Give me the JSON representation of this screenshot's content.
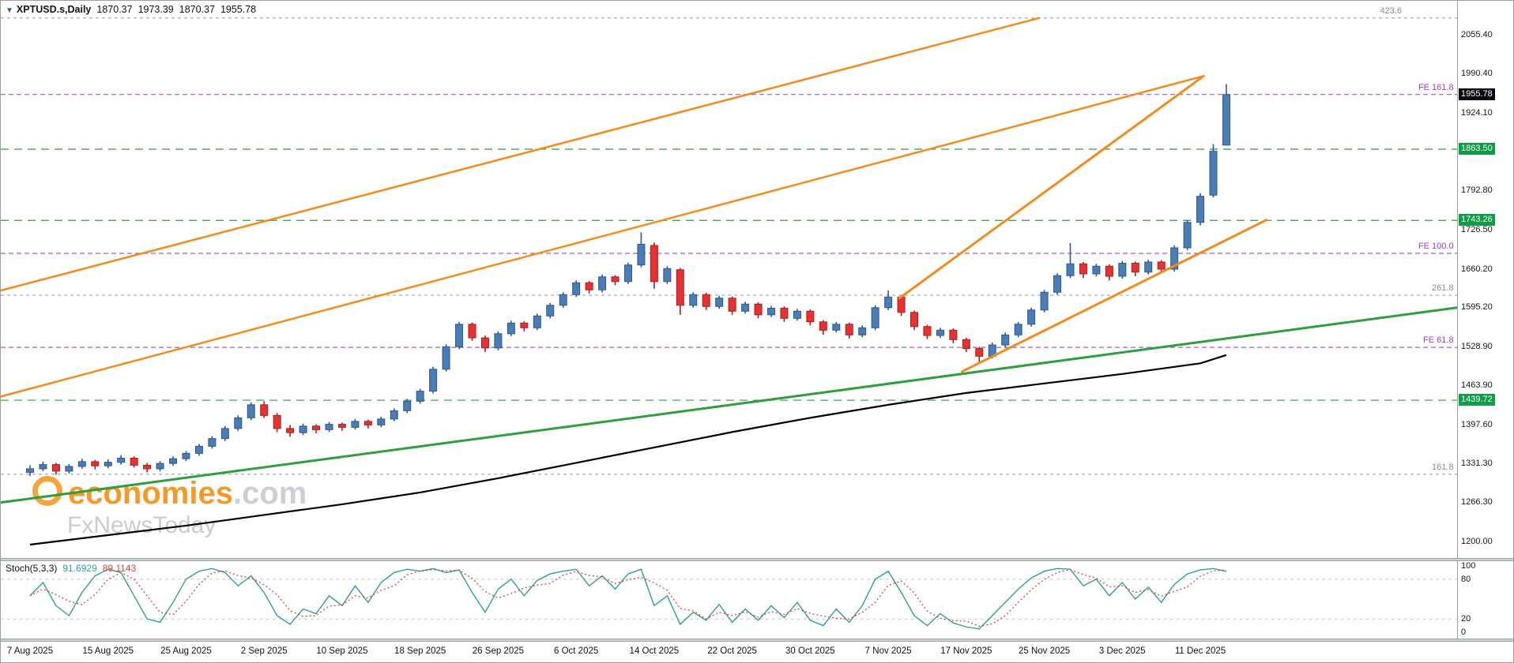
{
  "window": {
    "symbol_tag": "▼",
    "title": "XPTUSD.s,Daily",
    "ohlc": {
      "open": "1870.37",
      "high": "1973.39",
      "low": "1870.37",
      "close": "1955.78"
    }
  },
  "watermark": {
    "brand": "economies",
    "domain": ".com",
    "subbrand": "FxNewsToday"
  },
  "price_axis": {
    "ticks": [
      "2055.40",
      "1990.40",
      "1924.10",
      "1792.80",
      "1726.50",
      "1660.20",
      "1595.20",
      "1528.90",
      "1463.90",
      "1397.60",
      "1331.30",
      "1266.30",
      "1200.00"
    ],
    "level_labels": [
      {
        "text": "1955.78",
        "price": 1955.78,
        "style": "current"
      },
      {
        "text": "1863.50",
        "price": 1863.5,
        "style": "green"
      },
      {
        "text": "1743.26",
        "price": 1743.26,
        "style": "green"
      },
      {
        "text": "1439.72",
        "price": 1439.72,
        "style": "green"
      }
    ]
  },
  "time_axis": {
    "labels": [
      "7 Aug 2025",
      "15 Aug 2025",
      "25 Aug 2025",
      "2 Sep 2025",
      "10 Sep 2025",
      "18 Sep 2025",
      "26 Sep 2025",
      "6 Oct 2025",
      "14 Oct 2025",
      "22 Oct 2025",
      "30 Oct 2025",
      "7 Nov 2025",
      "17 Nov 2025",
      "25 Nov 2025",
      "3 Dec 2025",
      "11 Dec 2025"
    ],
    "step": 6
  },
  "colors": {
    "bull": "#4a7cb5",
    "bull_edge": "#31598a",
    "bear": "#e63232",
    "bear_edge": "#a81f1f",
    "ma": "#000000",
    "orange": "#f08c1e",
    "green_line": "#2f9e3f",
    "green_box": "#0e9c44",
    "purple": "#9a5ec4",
    "gray_level": "#a9aab6",
    "stoch_main": "#2e9e9e",
    "stoch_signal": "#e04040",
    "current_box": "#06060f"
  },
  "chart_data": {
    "type": "candlestick",
    "symbol": "XPTUSD.s",
    "timeframe": "Daily",
    "visible_price_range": [
      1173,
      2114
    ],
    "candles": [
      [
        1318,
        1330,
        1312,
        1324
      ],
      [
        1324,
        1336,
        1320,
        1331
      ],
      [
        1331,
        1334,
        1314,
        1320
      ],
      [
        1320,
        1332,
        1316,
        1328
      ],
      [
        1328,
        1341,
        1324,
        1336
      ],
      [
        1336,
        1339,
        1323,
        1329
      ],
      [
        1329,
        1340,
        1325,
        1335
      ],
      [
        1335,
        1347,
        1331,
        1342
      ],
      [
        1342,
        1345,
        1326,
        1330
      ],
      [
        1330,
        1334,
        1318,
        1324
      ],
      [
        1324,
        1337,
        1320,
        1333
      ],
      [
        1333,
        1345,
        1329,
        1341
      ],
      [
        1341,
        1354,
        1337,
        1350
      ],
      [
        1350,
        1366,
        1346,
        1362
      ],
      [
        1362,
        1379,
        1358,
        1375
      ],
      [
        1375,
        1396,
        1371,
        1392
      ],
      [
        1392,
        1414,
        1388,
        1410
      ],
      [
        1410,
        1436,
        1406,
        1432
      ],
      [
        1432,
        1438,
        1410,
        1414
      ],
      [
        1414,
        1418,
        1386,
        1392
      ],
      [
        1392,
        1398,
        1378,
        1385
      ],
      [
        1385,
        1400,
        1381,
        1396
      ],
      [
        1396,
        1399,
        1384,
        1390
      ],
      [
        1390,
        1403,
        1386,
        1399
      ],
      [
        1399,
        1402,
        1388,
        1394
      ],
      [
        1394,
        1408,
        1390,
        1404
      ],
      [
        1404,
        1407,
        1392,
        1398
      ],
      [
        1398,
        1412,
        1394,
        1408
      ],
      [
        1408,
        1426,
        1404,
        1422
      ],
      [
        1422,
        1442,
        1418,
        1438
      ],
      [
        1438,
        1459,
        1434,
        1455
      ],
      [
        1455,
        1496,
        1451,
        1492
      ],
      [
        1492,
        1534,
        1488,
        1530
      ],
      [
        1530,
        1572,
        1526,
        1568
      ],
      [
        1568,
        1571,
        1540,
        1545
      ],
      [
        1545,
        1549,
        1521,
        1528
      ],
      [
        1528,
        1556,
        1524,
        1552
      ],
      [
        1552,
        1574,
        1548,
        1570
      ],
      [
        1570,
        1573,
        1556,
        1562
      ],
      [
        1562,
        1586,
        1558,
        1582
      ],
      [
        1582,
        1604,
        1578,
        1600
      ],
      [
        1600,
        1622,
        1596,
        1618
      ],
      [
        1618,
        1642,
        1614,
        1638
      ],
      [
        1638,
        1641,
        1620,
        1626
      ],
      [
        1626,
        1652,
        1622,
        1648
      ],
      [
        1648,
        1651,
        1634,
        1640
      ],
      [
        1640,
        1672,
        1636,
        1668
      ],
      [
        1668,
        1723,
        1664,
        1703
      ],
      [
        1701,
        1706,
        1628,
        1640
      ],
      [
        1640,
        1666,
        1636,
        1662
      ],
      [
        1660,
        1663,
        1584,
        1600
      ],
      [
        1600,
        1622,
        1596,
        1618
      ],
      [
        1618,
        1621,
        1592,
        1598
      ],
      [
        1598,
        1616,
        1594,
        1612
      ],
      [
        1612,
        1615,
        1584,
        1590
      ],
      [
        1590,
        1606,
        1586,
        1602
      ],
      [
        1602,
        1605,
        1578,
        1584
      ],
      [
        1584,
        1599,
        1580,
        1595
      ],
      [
        1595,
        1598,
        1572,
        1578
      ],
      [
        1578,
        1594,
        1574,
        1590
      ],
      [
        1590,
        1593,
        1566,
        1572
      ],
      [
        1572,
        1575,
        1550,
        1558
      ],
      [
        1558,
        1572,
        1554,
        1568
      ],
      [
        1568,
        1571,
        1544,
        1550
      ],
      [
        1550,
        1566,
        1546,
        1562
      ],
      [
        1562,
        1600,
        1558,
        1596
      ],
      [
        1596,
        1625,
        1592,
        1614
      ],
      [
        1614,
        1617,
        1582,
        1588
      ],
      [
        1588,
        1591,
        1558,
        1564
      ],
      [
        1564,
        1567,
        1543,
        1549
      ],
      [
        1549,
        1562,
        1545,
        1558
      ],
      [
        1558,
        1561,
        1536,
        1542
      ],
      [
        1542,
        1545,
        1521,
        1527
      ],
      [
        1527,
        1530,
        1502,
        1514
      ],
      [
        1514,
        1537,
        1510,
        1533
      ],
      [
        1533,
        1554,
        1529,
        1550
      ],
      [
        1550,
        1572,
        1546,
        1568
      ],
      [
        1568,
        1596,
        1564,
        1592
      ],
      [
        1592,
        1626,
        1588,
        1622
      ],
      [
        1622,
        1654,
        1618,
        1650
      ],
      [
        1650,
        1705,
        1646,
        1670
      ],
      [
        1670,
        1673,
        1646,
        1653
      ],
      [
        1653,
        1670,
        1649,
        1666
      ],
      [
        1666,
        1669,
        1642,
        1649
      ],
      [
        1649,
        1675,
        1645,
        1671
      ],
      [
        1671,
        1674,
        1649,
        1656
      ],
      [
        1656,
        1677,
        1652,
        1673
      ],
      [
        1673,
        1676,
        1654,
        1661
      ],
      [
        1661,
        1701,
        1657,
        1697
      ],
      [
        1697,
        1744,
        1693,
        1740
      ],
      [
        1740,
        1789,
        1735,
        1784
      ],
      [
        1786,
        1872,
        1782,
        1860
      ],
      [
        1870.37,
        1973.39,
        1870.37,
        1955.78
      ]
    ],
    "ma_black": {
      "indices": [
        0,
        6,
        12,
        18,
        24,
        30,
        36,
        42,
        48,
        54,
        60,
        66,
        72,
        78,
        84,
        90,
        92
      ],
      "values": [
        1196,
        1212,
        1228,
        1246,
        1264,
        1284,
        1308,
        1334,
        1360,
        1386,
        1410,
        1432,
        1452,
        1468,
        1484,
        1502,
        1516
      ]
    },
    "levels": [
      {
        "label": "423.6",
        "price": 2085,
        "type": "gray",
        "lx": 0.962
      },
      {
        "label": "FE 161.8",
        "price": 1955.9,
        "type": "purple"
      },
      {
        "label": "",
        "price": 1863.5,
        "type": "green"
      },
      {
        "label": "",
        "price": 1743.26,
        "type": "green"
      },
      {
        "label": "FE 100.0",
        "price": 1687.6,
        "type": "purple"
      },
      {
        "label": "261.8",
        "price": 1617.0,
        "type": "gray"
      },
      {
        "label": "FE 61.8",
        "price": 1528.9,
        "type": "purple"
      },
      {
        "label": "",
        "price": 1439.72,
        "type": "green"
      },
      {
        "label": "161.8",
        "price": 1314.9,
        "type": "gray"
      }
    ],
    "trendlines": [
      {
        "name": "upper-parallel-line",
        "x1": 0,
        "p1": 1625,
        "x2": 0.713,
        "p2": 2085,
        "color": "orange",
        "width": 2.5
      },
      {
        "name": "main-uptrend-line",
        "x1": 0,
        "p1": 1446,
        "x2": 0.826,
        "p2": 1987,
        "color": "orange",
        "width": 2.5
      },
      {
        "name": "steep-channel-upper-line",
        "x1": 0.617,
        "p1": 1612,
        "x2": 0.826,
        "p2": 1987,
        "color": "orange",
        "width": 3
      },
      {
        "name": "steep-channel-lower-line",
        "x1": 0.66,
        "p1": 1488,
        "x2": 0.869,
        "p2": 1744,
        "color": "orange",
        "width": 3
      },
      {
        "name": "support-trendline",
        "x1": 0,
        "p1": 1267,
        "x2": 1.0,
        "p2": 1596,
        "color": "green",
        "width": 3
      }
    ],
    "stochastic": {
      "name": "Stoch(5,3,3)",
      "main_value": "91.6929",
      "signal_value": "89.1143",
      "scale_labels": [
        "100",
        "80",
        "20",
        "0"
      ],
      "scale_values": [
        100,
        80,
        20,
        0
      ],
      "levels": [
        80,
        20
      ],
      "main": [
        55,
        75,
        40,
        25,
        60,
        85,
        95,
        90,
        55,
        20,
        15,
        45,
        80,
        92,
        96,
        90,
        70,
        85,
        60,
        25,
        12,
        35,
        28,
        55,
        40,
        70,
        45,
        75,
        90,
        95,
        92,
        96,
        90,
        94,
        60,
        30,
        65,
        80,
        55,
        78,
        88,
        92,
        95,
        70,
        85,
        65,
        88,
        95,
        40,
        55,
        12,
        30,
        18,
        42,
        15,
        35,
        18,
        40,
        22,
        45,
        18,
        10,
        35,
        15,
        40,
        80,
        92,
        60,
        25,
        10,
        28,
        14,
        8,
        5,
        25,
        45,
        65,
        82,
        92,
        96,
        95,
        70,
        80,
        55,
        75,
        50,
        68,
        45,
        72,
        88,
        94,
        96,
        91.7
      ]
    }
  }
}
